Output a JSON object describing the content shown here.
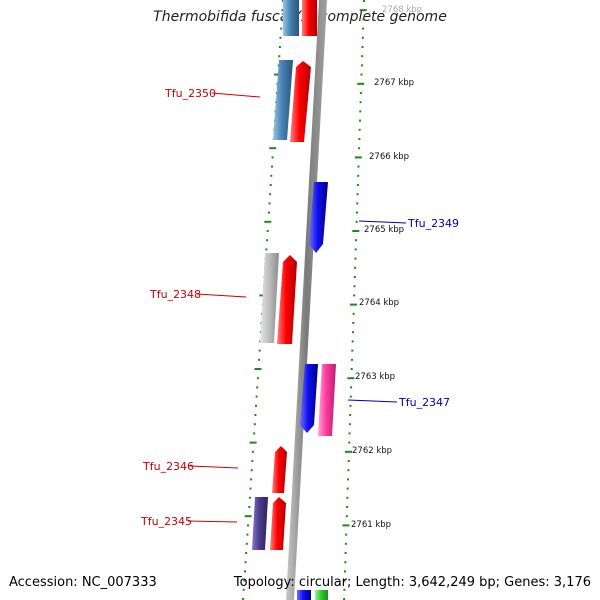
{
  "title": "Thermobifida fusca YX, complete genome",
  "footer": {
    "accession": "Accession: NC_007333",
    "topology": "Topology: circular; Length: 3,642,249 bp; Genes: 3,176"
  },
  "colors": {
    "backbone": "#8a8a8a",
    "tick": "#1a8a1a",
    "label_red": "#cc0000",
    "label_blue": "#0000aa",
    "gene_red": "#ee0000",
    "gene_blue": "#1515d0",
    "gene_steel": "#4682b4",
    "gene_gray": "#b8b8b8",
    "gene_pink": "#ff3aa0",
    "gene_purple": "#4b3c8e",
    "gene_green": "#33cc33"
  },
  "scale_labels": [
    "2768 kbp",
    "2767 kbp",
    "2766 kbp",
    "2765 kbp",
    "2764 kbp",
    "2763 kbp",
    "2762 kbp",
    "2761 kbp"
  ],
  "gene_labels": [
    {
      "text": "Tfu_2350",
      "color": "red"
    },
    {
      "text": "Tfu_2349",
      "color": "blue"
    },
    {
      "text": "Tfu_2348",
      "color": "red"
    },
    {
      "text": "Tfu_2347",
      "color": "blue"
    },
    {
      "text": "Tfu_2346",
      "color": "red"
    },
    {
      "text": "Tfu_2345",
      "color": "red"
    }
  ]
}
